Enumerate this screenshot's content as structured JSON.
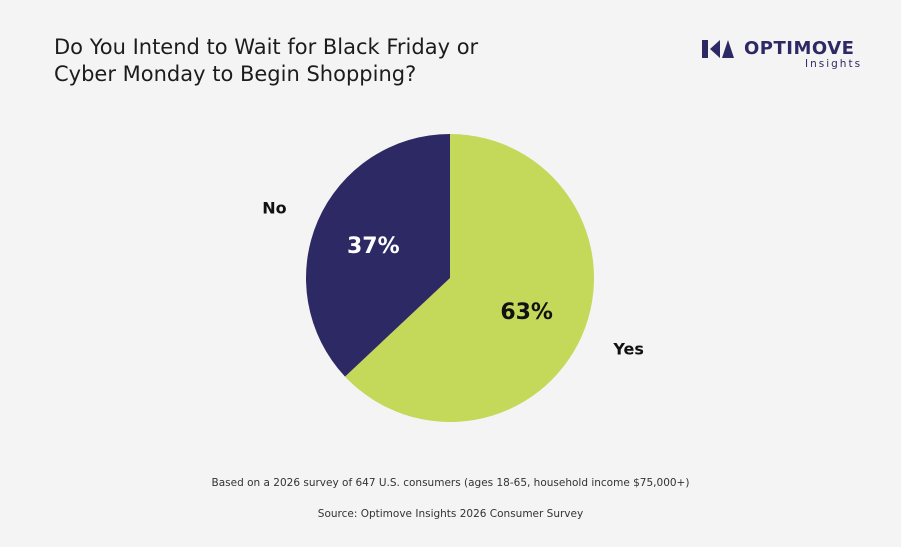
{
  "title": {
    "line1": "Do You Intend to Wait for Black Friday or",
    "line2": "Cyber Monday to Begin Shopping?"
  },
  "logo": {
    "name": "OPTIMOVE",
    "sub": "Insights"
  },
  "chart_data": {
    "type": "pie",
    "slices": [
      {
        "label": "Yes",
        "value": 63,
        "value_label": "63%",
        "color": "#c4d85a"
      },
      {
        "label": "No",
        "value": 37,
        "value_label": "37%",
        "color": "#2d2964"
      }
    ]
  },
  "footnotes": {
    "survey": "Based on a 2026 survey of 647 U.S. consumers (ages 18-65, household income $75,000+)",
    "source": "Source: Optimove Insights 2026 Consumer Survey"
  }
}
